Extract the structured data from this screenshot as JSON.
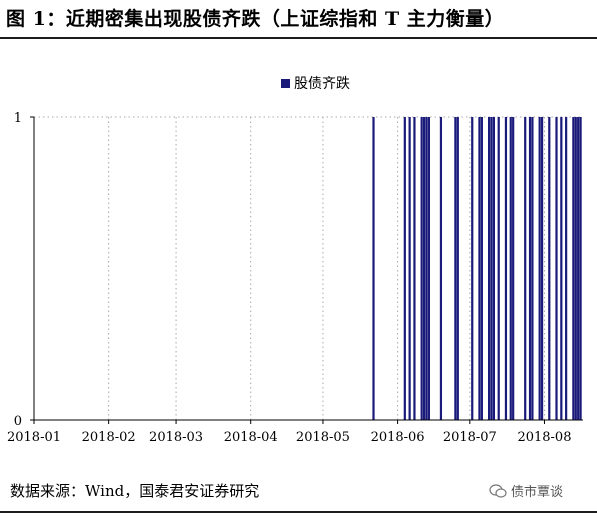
{
  "header": {
    "title": "图 1：近期密集出现股债齐跌（上证综指和 T 主力衡量）"
  },
  "footer": {
    "source": "数据来源：Wind，国泰君安证券研究",
    "watermark": "债市覃谈"
  },
  "colors": {
    "bar": "#1a1a7a",
    "axis": "#000000",
    "grid": "#aaaaaa"
  },
  "chart_data": {
    "type": "bar",
    "title": "",
    "xlabel": "",
    "ylabel": "",
    "ylim": [
      0,
      1
    ],
    "yticks": [
      "0",
      "1"
    ],
    "legend": {
      "placement": "top-center",
      "entries": [
        "股债齐跌"
      ]
    },
    "grid": "vertical dotted at month boundaries",
    "xlim": [
      "2018-01-01",
      "2018-08-17"
    ],
    "x_tick_labels": [
      "2018-01",
      "2018-02",
      "2018-03",
      "2018-04",
      "2018-05",
      "2018-06",
      "2018-07",
      "2018-08"
    ],
    "series": [
      {
        "name": "股债齐跌",
        "x": [
          "2018-05-22",
          "2018-06-04",
          "2018-06-06",
          "2018-06-08",
          "2018-06-11",
          "2018-06-12",
          "2018-06-13",
          "2018-06-14",
          "2018-06-19",
          "2018-06-25",
          "2018-06-26",
          "2018-07-02",
          "2018-07-05",
          "2018-07-06",
          "2018-07-09",
          "2018-07-10",
          "2018-07-11",
          "2018-07-13",
          "2018-07-16",
          "2018-07-18",
          "2018-07-19",
          "2018-07-24",
          "2018-07-26",
          "2018-07-27",
          "2018-07-30",
          "2018-07-31",
          "2018-08-03",
          "2018-08-06",
          "2018-08-08",
          "2018-08-10",
          "2018-08-13",
          "2018-08-14",
          "2018-08-15",
          "2018-08-16"
        ],
        "values": [
          1,
          1,
          1,
          1,
          1,
          1,
          1,
          1,
          1,
          1,
          1,
          1,
          1,
          1,
          1,
          1,
          1,
          1,
          1,
          1,
          1,
          1,
          1,
          1,
          1,
          1,
          1,
          1,
          1,
          1,
          1,
          1,
          1,
          1
        ]
      }
    ]
  }
}
